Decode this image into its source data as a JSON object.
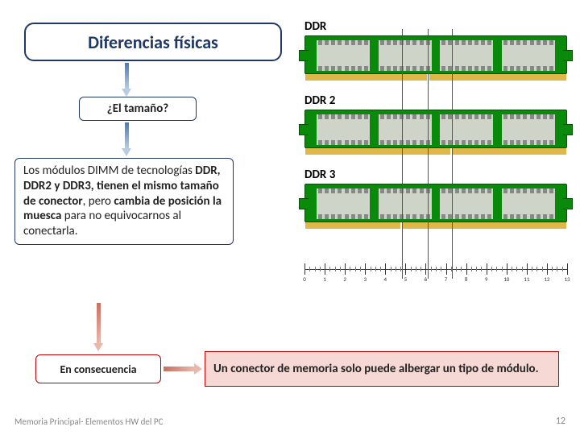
{
  "title": "Diferencias físicas",
  "size_question": "¿El tamaño?",
  "body_html": "Los módulos DIMM de tecnologías <b>DDR, DDR2 y DDR3, tienen el mismo tamaño de conector</b>, pero <b>cambia de posición la muesca</b> para no equivocarnos al conectarla.",
  "consequence": "En consecuencia",
  "result": "Un conector de memoria solo puede albergar un tipo de módulo.",
  "footer_left": "Memoria Principal- Elementos HW del PC",
  "page_number": "12",
  "ram": {
    "labels": [
      "DDR",
      "DDR 2",
      "DDR 3"
    ],
    "board_color": "#0a8a0a",
    "chip_color": "#cfd4c8",
    "contact_color": "#e0b84a",
    "chips_per_module": 4,
    "pins_per_chip_side": 8,
    "notch_positions": [
      0.47,
      0.56,
      0.37
    ],
    "ruler": {
      "min": 0,
      "max": 13,
      "major_step": 1,
      "minor_per_major": 4
    }
  },
  "colors": {
    "title_border": "#1f3864",
    "red_border": "#c00000",
    "red_fill": "#f6d9d4",
    "arrow_blue": "#4a7ab8",
    "arrow_red": "#c87060"
  }
}
